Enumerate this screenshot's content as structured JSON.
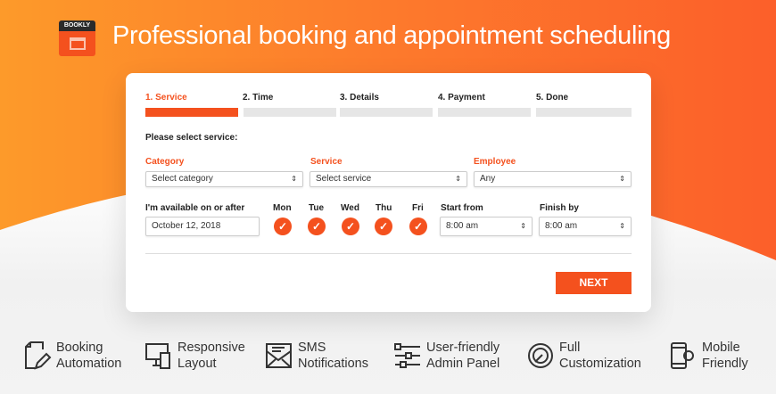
{
  "header": {
    "logo_text": "BOOKLY",
    "title": "Professional booking and appointment scheduling"
  },
  "colors": {
    "accent": "#f4511e",
    "orange": "#fd8a2b"
  },
  "steps": [
    {
      "label": "1. Service",
      "active": true
    },
    {
      "label": "2. Time"
    },
    {
      "label": "3. Details"
    },
    {
      "label": "4. Payment"
    },
    {
      "label": "5. Done"
    }
  ],
  "form": {
    "prompt": "Please select service:",
    "category": {
      "label": "Category",
      "value": "Select category"
    },
    "service": {
      "label": "Service",
      "value": "Select service"
    },
    "employee": {
      "label": "Employee",
      "value": "Any"
    },
    "available": {
      "label": "I'm available on or after",
      "value": "October 12, 2018"
    },
    "days": [
      {
        "label": "Mon",
        "checked": true
      },
      {
        "label": "Tue",
        "checked": true
      },
      {
        "label": "Wed",
        "checked": true
      },
      {
        "label": "Thu",
        "checked": true
      },
      {
        "label": "Fri",
        "checked": true
      }
    ],
    "start": {
      "label": "Start from",
      "value": "8:00 am"
    },
    "finish": {
      "label": "Finish by",
      "value": "8:00 am"
    },
    "next_label": "NEXT"
  },
  "features": [
    {
      "icon": "document-pen-icon",
      "line1": "Booking",
      "line2": "Automation"
    },
    {
      "icon": "devices-icon",
      "line1": "Responsive",
      "line2": "Layout"
    },
    {
      "icon": "envelope-icon",
      "line1": "SMS",
      "line2": "Notifications"
    },
    {
      "icon": "sliders-icon",
      "line1": "User-friendly",
      "line2": "Admin Panel"
    },
    {
      "icon": "customization-icon",
      "line1": "Full",
      "line2": "Customization"
    },
    {
      "icon": "mobile-gear-icon",
      "line1": "Mobile",
      "line2": "Friendly"
    }
  ]
}
